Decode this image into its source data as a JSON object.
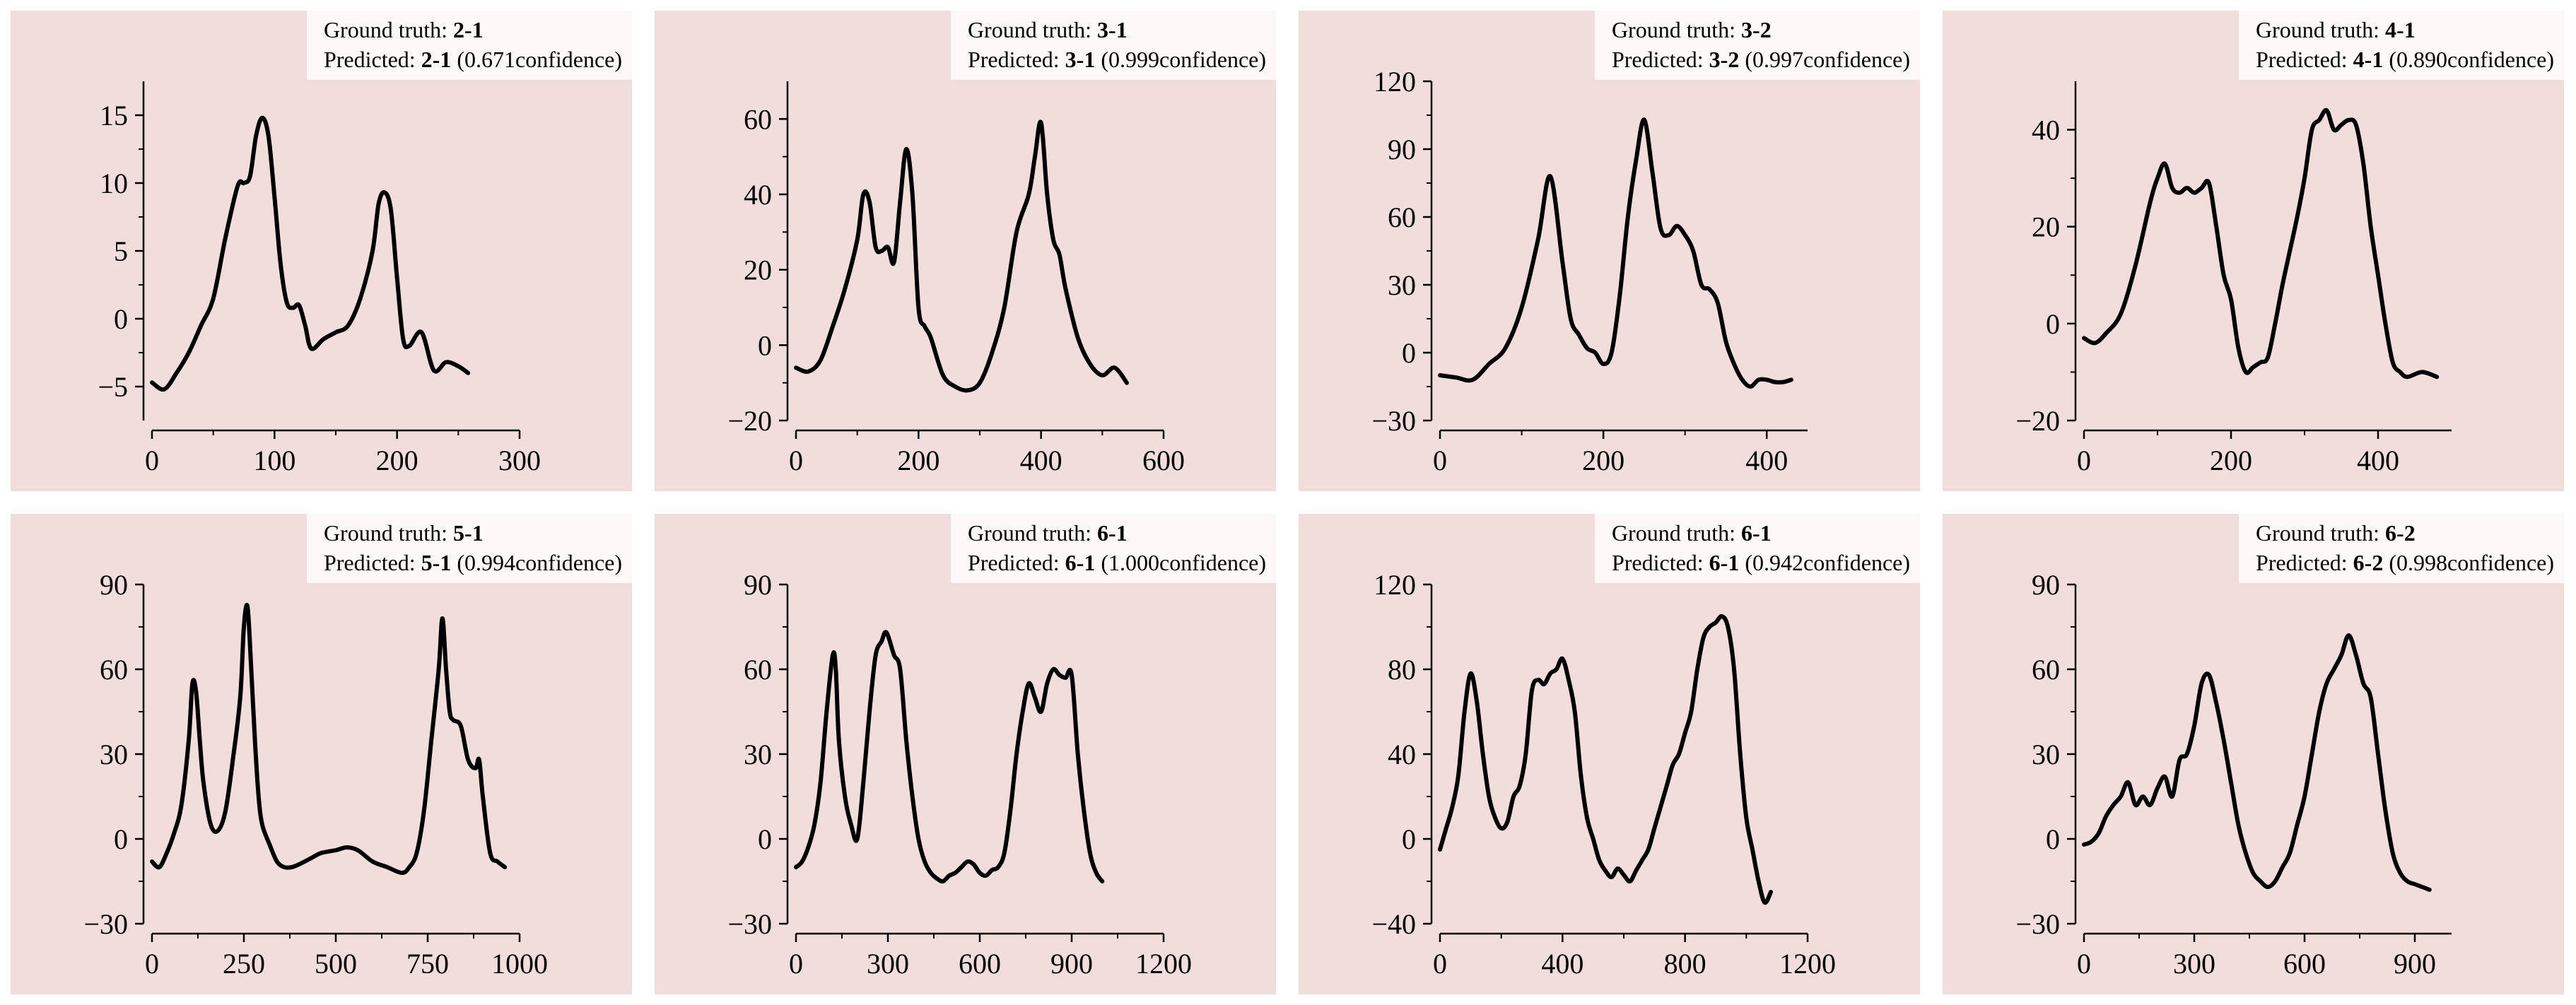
{
  "legend_labels": {
    "ground_truth": "Ground truth:",
    "predicted": "Predicted:",
    "confidence_suffix": "confidence"
  },
  "colors": {
    "panel_background": "#f1dddc",
    "legend_background": "#fcf8f8",
    "line": "#000000"
  },
  "chart_data": [
    {
      "type": "line",
      "ground_truth": "2-1",
      "predicted": "2-1",
      "confidence": "0.671",
      "xlim": [
        0,
        300
      ],
      "ylim": [
        -7.5,
        17.5
      ],
      "xticks": [
        0,
        100,
        200,
        300
      ],
      "yticks": [
        -5,
        0,
        5,
        10,
        15
      ],
      "x": [
        0,
        10,
        20,
        30,
        40,
        50,
        60,
        70,
        75,
        80,
        85,
        90,
        95,
        100,
        105,
        110,
        115,
        120,
        125,
        130,
        140,
        150,
        160,
        170,
        180,
        185,
        190,
        195,
        200,
        205,
        210,
        220,
        230,
        240,
        250,
        258
      ],
      "y": [
        -4.7,
        -5.2,
        -4.0,
        -2.5,
        -0.5,
        1.5,
        6.0,
        9.8,
        10.0,
        10.5,
        13.5,
        14.8,
        13.5,
        9.0,
        4.0,
        1.2,
        0.8,
        1.0,
        -0.5,
        -2.2,
        -1.5,
        -1.0,
        -0.5,
        1.5,
        5.0,
        8.5,
        9.3,
        8.0,
        3.0,
        -1.5,
        -2.0,
        -1.0,
        -3.8,
        -3.2,
        -3.5,
        -4.0
      ]
    },
    {
      "type": "line",
      "ground_truth": "3-1",
      "predicted": "3-1",
      "confidence": "0.999",
      "xlim": [
        0,
        600
      ],
      "ylim": [
        -20,
        70
      ],
      "xticks": [
        0,
        200,
        400,
        600
      ],
      "yticks": [
        -20,
        0,
        20,
        40,
        60
      ],
      "x": [
        0,
        20,
        40,
        60,
        80,
        100,
        110,
        120,
        130,
        140,
        150,
        160,
        170,
        180,
        190,
        200,
        210,
        220,
        240,
        260,
        280,
        300,
        320,
        340,
        360,
        380,
        390,
        400,
        410,
        420,
        430,
        440,
        460,
        480,
        500,
        520,
        540
      ],
      "y": [
        -6,
        -7,
        -4,
        5,
        15,
        28,
        40,
        38,
        26,
        25,
        26,
        22,
        38,
        52,
        40,
        10,
        5,
        2,
        -8,
        -11,
        -12,
        -10,
        -2,
        10,
        30,
        40,
        50,
        59,
        40,
        28,
        24,
        15,
        2,
        -5,
        -8,
        -6,
        -10
      ]
    },
    {
      "type": "line",
      "ground_truth": "3-2",
      "predicted": "3-2",
      "confidence": "0.997",
      "xlim": [
        0,
        450
      ],
      "ylim": [
        -30,
        120
      ],
      "xticks": [
        0,
        200,
        400
      ],
      "yticks": [
        -30,
        0,
        30,
        60,
        90,
        120
      ],
      "x": [
        0,
        20,
        40,
        60,
        80,
        100,
        120,
        135,
        150,
        160,
        170,
        180,
        190,
        200,
        210,
        220,
        230,
        240,
        250,
        260,
        270,
        280,
        290,
        300,
        310,
        320,
        330,
        340,
        350,
        360,
        370,
        380,
        390,
        400,
        410,
        420,
        430
      ],
      "y": [
        -10,
        -11,
        -12,
        -5,
        2,
        20,
        50,
        78,
        40,
        15,
        8,
        2,
        0,
        -5,
        0,
        25,
        60,
        85,
        103,
        80,
        55,
        52,
        56,
        52,
        45,
        30,
        28,
        22,
        5,
        -5,
        -12,
        -15,
        -12,
        -12,
        -13,
        -13,
        -12
      ]
    },
    {
      "type": "line",
      "ground_truth": "4-1",
      "predicted": "4-1",
      "confidence": "0.890",
      "xlim": [
        0,
        500
      ],
      "ylim": [
        -20,
        50
      ],
      "xticks": [
        0,
        200,
        400
      ],
      "yticks": [
        -20,
        0,
        20,
        40
      ],
      "x": [
        0,
        15,
        30,
        50,
        70,
        90,
        100,
        110,
        120,
        130,
        140,
        150,
        160,
        170,
        180,
        190,
        200,
        210,
        220,
        230,
        240,
        250,
        260,
        270,
        280,
        290,
        300,
        310,
        320,
        330,
        340,
        350,
        360,
        370,
        380,
        390,
        400,
        410,
        420,
        430,
        440,
        460,
        480
      ],
      "y": [
        -3,
        -4,
        -2,
        2,
        12,
        25,
        30,
        33,
        28,
        27,
        28,
        27,
        28,
        29,
        20,
        10,
        5,
        -5,
        -10,
        -9,
        -8,
        -7,
        0,
        8,
        15,
        22,
        30,
        40,
        42,
        44,
        40,
        41,
        42,
        41,
        33,
        20,
        10,
        0,
        -8,
        -10,
        -11,
        -10,
        -11
      ]
    },
    {
      "type": "line",
      "ground_truth": "5-1",
      "predicted": "5-1",
      "confidence": "0.994",
      "xlim": [
        0,
        1000
      ],
      "ylim": [
        -30,
        90
      ],
      "xticks": [
        0,
        250,
        500,
        750,
        1000
      ],
      "yticks": [
        -30,
        0,
        30,
        60,
        90
      ],
      "x": [
        0,
        20,
        40,
        60,
        80,
        100,
        110,
        120,
        130,
        140,
        160,
        180,
        200,
        220,
        240,
        250,
        260,
        270,
        280,
        290,
        300,
        320,
        340,
        360,
        380,
        400,
        430,
        460,
        500,
        530,
        560,
        600,
        640,
        680,
        700,
        720,
        740,
        760,
        780,
        790,
        800,
        810,
        820,
        840,
        860,
        880,
        890,
        900,
        920,
        940,
        960
      ],
      "y": [
        -8,
        -10,
        -5,
        2,
        12,
        35,
        55,
        52,
        35,
        20,
        5,
        3,
        10,
        28,
        50,
        75,
        82,
        60,
        35,
        15,
        5,
        -2,
        -8,
        -10,
        -10,
        -9,
        -7,
        -5,
        -4,
        -3,
        -4,
        -8,
        -10,
        -12,
        -10,
        -5,
        10,
        35,
        60,
        78,
        60,
        45,
        42,
        40,
        28,
        25,
        28,
        15,
        -5,
        -8,
        -10
      ]
    },
    {
      "type": "line",
      "ground_truth": "6-1",
      "predicted": "6-1",
      "confidence": "1.000",
      "xlim": [
        0,
        1200
      ],
      "ylim": [
        -30,
        90
      ],
      "xticks": [
        0,
        300,
        600,
        900,
        1200
      ],
      "yticks": [
        -30,
        0,
        30,
        60,
        90
      ],
      "x": [
        0,
        20,
        40,
        60,
        80,
        100,
        120,
        130,
        140,
        160,
        180,
        200,
        220,
        240,
        260,
        280,
        290,
        300,
        320,
        340,
        360,
        380,
        400,
        420,
        440,
        460,
        480,
        500,
        520,
        540,
        560,
        580,
        600,
        620,
        640,
        660,
        680,
        700,
        720,
        740,
        760,
        780,
        800,
        820,
        840,
        860,
        880,
        900,
        920,
        940,
        960,
        980,
        1000
      ],
      "y": [
        -10,
        -8,
        -3,
        5,
        20,
        45,
        65,
        60,
        35,
        15,
        5,
        0,
        20,
        45,
        65,
        70,
        73,
        72,
        65,
        60,
        35,
        15,
        0,
        -8,
        -12,
        -14,
        -15,
        -13,
        -12,
        -10,
        -8,
        -9,
        -12,
        -13,
        -11,
        -10,
        -5,
        10,
        30,
        45,
        55,
        50,
        45,
        55,
        60,
        58,
        57,
        58,
        30,
        10,
        -5,
        -12,
        -15
      ]
    },
    {
      "type": "line",
      "ground_truth": "6-1",
      "predicted": "6-1",
      "confidence": "0.942",
      "xlim": [
        0,
        1200
      ],
      "ylim": [
        -40,
        120
      ],
      "xticks": [
        0,
        400,
        800,
        1200
      ],
      "yticks": [
        -40,
        0,
        40,
        80,
        120
      ],
      "x": [
        0,
        20,
        40,
        60,
        80,
        100,
        120,
        140,
        160,
        180,
        200,
        220,
        240,
        260,
        280,
        300,
        320,
        340,
        360,
        380,
        400,
        420,
        440,
        460,
        480,
        500,
        520,
        540,
        560,
        580,
        600,
        620,
        640,
        660,
        680,
        700,
        720,
        740,
        760,
        780,
        800,
        820,
        840,
        860,
        880,
        900,
        920,
        940,
        960,
        980,
        1000,
        1020,
        1040,
        1060,
        1080
      ],
      "y": [
        -5,
        5,
        15,
        30,
        60,
        78,
        65,
        40,
        20,
        10,
        5,
        8,
        20,
        25,
        40,
        70,
        75,
        73,
        78,
        80,
        85,
        75,
        60,
        30,
        10,
        0,
        -10,
        -15,
        -18,
        -14,
        -17,
        -20,
        -15,
        -10,
        -5,
        5,
        15,
        25,
        35,
        40,
        50,
        60,
        80,
        95,
        100,
        102,
        105,
        100,
        80,
        40,
        10,
        -5,
        -20,
        -30,
        -25
      ]
    },
    {
      "type": "line",
      "ground_truth": "6-2",
      "predicted": "6-2",
      "confidence": "0.998",
      "xlim": [
        0,
        1000
      ],
      "ylim": [
        -30,
        90
      ],
      "xticks": [
        0,
        300,
        600,
        900
      ],
      "yticks": [
        -30,
        0,
        30,
        60,
        90
      ],
      "x": [
        0,
        20,
        40,
        60,
        80,
        100,
        120,
        140,
        160,
        180,
        200,
        220,
        240,
        260,
        280,
        300,
        320,
        340,
        360,
        380,
        400,
        420,
        440,
        460,
        480,
        500,
        520,
        540,
        560,
        580,
        600,
        620,
        640,
        660,
        680,
        700,
        720,
        740,
        760,
        780,
        800,
        820,
        840,
        860,
        880,
        900,
        920,
        940
      ],
      "y": [
        -2,
        -1,
        2,
        8,
        12,
        15,
        20,
        12,
        15,
        12,
        18,
        22,
        15,
        28,
        30,
        40,
        55,
        58,
        48,
        35,
        20,
        5,
        -5,
        -12,
        -15,
        -17,
        -15,
        -10,
        -5,
        5,
        15,
        30,
        45,
        55,
        60,
        65,
        72,
        65,
        55,
        50,
        30,
        10,
        -5,
        -12,
        -15,
        -16,
        -17,
        -18
      ]
    }
  ]
}
